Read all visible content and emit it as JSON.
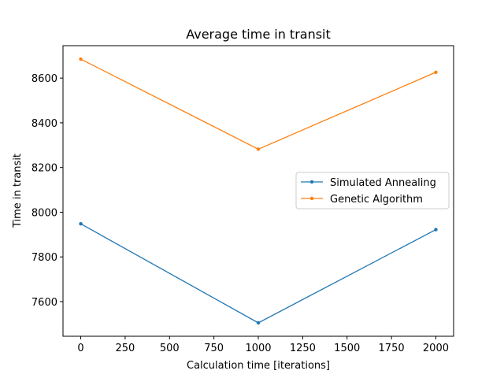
{
  "chart_data": {
    "type": "line",
    "title": "Average time in transit",
    "xlabel": "Calculation time [iterations]",
    "ylabel": "Time in transit",
    "x": [
      0,
      1000,
      2000
    ],
    "xlim": [
      -100,
      2100
    ],
    "ylim": [
      7445,
      8745
    ],
    "xticks": [
      0,
      250,
      500,
      750,
      1000,
      1250,
      1500,
      1750,
      2000
    ],
    "yticks": [
      7600,
      7800,
      8000,
      8200,
      8400,
      8600
    ],
    "grid": false,
    "legend_position": "center-right",
    "series": [
      {
        "name": "Simulated Annealing",
        "values": [
          7948,
          7505,
          7922
        ],
        "color": "#1f77b4",
        "marker": "dot"
      },
      {
        "name": "Genetic Algorithm",
        "values": [
          8685,
          8282,
          8626
        ],
        "color": "#ff7f0e",
        "marker": "dot"
      }
    ]
  }
}
